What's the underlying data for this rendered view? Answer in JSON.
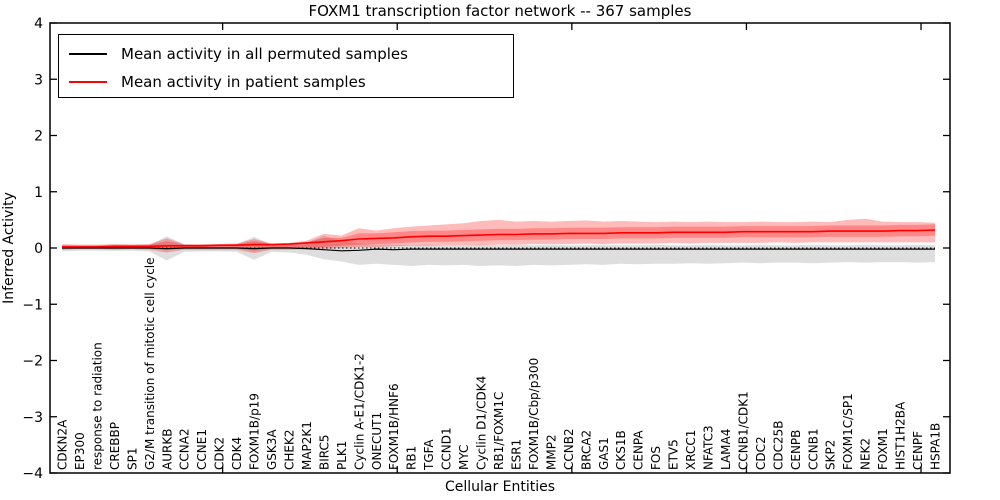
{
  "figure": {
    "title": "FOXM1 transcription factor network -- 367 samples",
    "xlabel": "Cellular Entities",
    "ylabel": "Inferred Activity"
  },
  "legend": {
    "items": [
      {
        "label": "Mean activity in all permuted samples",
        "color": "#000000"
      },
      {
        "label": "Mean activity in patient samples",
        "color": "#ff0000"
      }
    ]
  },
  "colors": {
    "patient_line": "#ff0000",
    "permuted_line": "#000000",
    "patient_band": "rgba(255,0,0,0.27)",
    "permuted_band": "rgba(0,0,0,0.13)"
  },
  "chart_data": {
    "type": "line",
    "title": "FOXM1 transcription factor network -- 367 samples",
    "xlabel": "Cellular Entities",
    "ylabel": "Inferred Activity",
    "ylim": [
      -4,
      4
    ],
    "yticks": [
      4,
      3,
      2,
      1,
      0,
      -1,
      -2,
      -3,
      -4
    ],
    "grid": false,
    "legend_position": "upper left",
    "zero_line_style": "dotted",
    "categories": [
      "CDKN2A",
      "EP300",
      "response to radiation",
      "CREBBP",
      "SP1",
      "G2/M transition of mitotic cell cycle",
      "AURKB",
      "CCNA2",
      "CCNE1",
      "CDK2",
      "CDK4",
      "FOXM1B/p19",
      "GSK3A",
      "CHEK2",
      "MAP2K1",
      "BIRC5",
      "PLK1",
      "Cyclin A-E1/CDK1-2",
      "ONECUT1",
      "FOXM1B/HNF6",
      "RB1",
      "TGFA",
      "CCND1",
      "MYC",
      "Cyclin D1/CDK4",
      "RB1/FOXM1C",
      "ESR1",
      "FOXM1B/Cbp/p300",
      "MMP2",
      "CCNB2",
      "BRCA2",
      "GAS1",
      "CKS1B",
      "CENPA",
      "FOS",
      "ETV5",
      "XRCC1",
      "NFATC3",
      "LAMA4",
      "CCNB1/CDK1",
      "CDC2",
      "CDC25B",
      "CENPB",
      "CCNB1",
      "SKP2",
      "FOXM1C/SP1",
      "NEK2",
      "FOXM1",
      "HIST1H2BA",
      "CENPF",
      "HSPA1B"
    ],
    "series": [
      {
        "name": "Mean activity in all permuted samples",
        "color": "#000000",
        "width": 1.2,
        "values": [
          0,
          0,
          0,
          0,
          0,
          0,
          -0.01,
          0,
          0,
          0,
          0,
          -0.01,
          0,
          0,
          -0.01,
          -0.03,
          -0.05,
          -0.04,
          -0.02,
          -0.03,
          -0.02,
          -0.02,
          -0.02,
          -0.02,
          -0.02,
          -0.02,
          -0.02,
          -0.02,
          -0.02,
          -0.02,
          -0.02,
          -0.02,
          -0.02,
          -0.02,
          -0.02,
          -0.02,
          -0.02,
          -0.02,
          -0.02,
          -0.02,
          -0.02,
          -0.02,
          -0.02,
          -0.02,
          -0.02,
          -0.02,
          -0.02,
          -0.02,
          -0.02,
          -0.02,
          -0.02
        ]
      },
      {
        "name": "Mean activity in patient samples",
        "color": "#ff0000",
        "width": 1.6,
        "values": [
          0.02,
          0.02,
          0.02,
          0.03,
          0.03,
          0.03,
          0.04,
          0.04,
          0.04,
          0.05,
          0.05,
          0.06,
          0.06,
          0.07,
          0.09,
          0.11,
          0.13,
          0.16,
          0.17,
          0.18,
          0.2,
          0.21,
          0.21,
          0.22,
          0.23,
          0.24,
          0.24,
          0.25,
          0.25,
          0.26,
          0.26,
          0.26,
          0.27,
          0.27,
          0.27,
          0.28,
          0.28,
          0.28,
          0.28,
          0.29,
          0.29,
          0.29,
          0.29,
          0.29,
          0.3,
          0.3,
          0.3,
          0.3,
          0.31,
          0.31,
          0.32
        ]
      }
    ],
    "bands": [
      {
        "name": "permuted-range",
        "color": "rgba(0,0,0,0.13)",
        "lower": [
          -0.06,
          -0.05,
          -0.05,
          -0.05,
          -0.05,
          -0.06,
          -0.22,
          -0.07,
          -0.06,
          -0.06,
          -0.07,
          -0.21,
          -0.07,
          -0.08,
          -0.12,
          -0.2,
          -0.24,
          -0.3,
          -0.28,
          -0.3,
          -0.32,
          -0.3,
          -0.31,
          -0.3,
          -0.32,
          -0.31,
          -0.32,
          -0.3,
          -0.31,
          -0.3,
          -0.29,
          -0.3,
          -0.28,
          -0.29,
          -0.28,
          -0.28,
          -0.27,
          -0.28,
          -0.27,
          -0.26,
          -0.27,
          -0.26,
          -0.26,
          -0.27,
          -0.26,
          -0.25,
          -0.26,
          -0.25,
          -0.25,
          -0.26,
          -0.25
        ],
        "upper": [
          0.05,
          0.04,
          0.04,
          0.04,
          0.04,
          0.05,
          0.21,
          0.06,
          0.05,
          0.05,
          0.06,
          0.2,
          0.06,
          0.07,
          0.09,
          0.22,
          0.12,
          0.08,
          0.06,
          0.06,
          0.05,
          0.06,
          0.05,
          0.05,
          0.06,
          0.05,
          0.06,
          0.05,
          0.06,
          0.05,
          0.05,
          0.06,
          0.05,
          0.05,
          0.06,
          0.05,
          0.05,
          0.06,
          0.05,
          0.05,
          0.06,
          0.05,
          0.05,
          0.06,
          0.05,
          0.05,
          0.06,
          0.05,
          0.05,
          0.06,
          0.05
        ]
      },
      {
        "name": "patient-range-outer",
        "color": "rgba(255,0,0,0.27)",
        "lower": [
          -0.03,
          -0.02,
          -0.02,
          -0.03,
          -0.02,
          -0.03,
          -0.08,
          -0.03,
          -0.03,
          -0.03,
          -0.03,
          -0.09,
          -0.03,
          -0.03,
          -0.02,
          -0.01,
          0.0,
          0.02,
          0.02,
          0.03,
          0.04,
          0.04,
          0.05,
          0.05,
          0.05,
          0.06,
          0.06,
          0.07,
          0.07,
          0.07,
          0.08,
          0.07,
          0.08,
          0.08,
          0.08,
          0.09,
          0.08,
          0.09,
          0.09,
          0.09,
          0.09,
          0.1,
          0.09,
          0.1,
          0.1,
          0.1,
          0.1,
          0.1,
          0.1,
          0.1,
          0.1
        ],
        "upper": [
          0.07,
          0.06,
          0.06,
          0.07,
          0.06,
          0.07,
          0.17,
          0.07,
          0.07,
          0.07,
          0.08,
          0.16,
          0.08,
          0.09,
          0.13,
          0.25,
          0.22,
          0.35,
          0.31,
          0.35,
          0.38,
          0.4,
          0.42,
          0.44,
          0.48,
          0.5,
          0.47,
          0.48,
          0.47,
          0.48,
          0.49,
          0.47,
          0.48,
          0.47,
          0.46,
          0.47,
          0.46,
          0.47,
          0.46,
          0.46,
          0.47,
          0.46,
          0.46,
          0.47,
          0.46,
          0.5,
          0.52,
          0.47,
          0.46,
          0.46,
          0.45
        ]
      },
      {
        "name": "patient-range-inner",
        "color": "rgba(255,0,0,0.27)",
        "lower": [
          -0.01,
          -0.01,
          -0.01,
          -0.01,
          -0.01,
          -0.01,
          -0.04,
          -0.01,
          -0.01,
          -0.01,
          -0.01,
          -0.05,
          -0.01,
          -0.01,
          0.0,
          0.02,
          0.04,
          0.06,
          0.07,
          0.08,
          0.1,
          0.11,
          0.11,
          0.12,
          0.13,
          0.14,
          0.14,
          0.15,
          0.15,
          0.16,
          0.16,
          0.16,
          0.17,
          0.17,
          0.17,
          0.18,
          0.18,
          0.18,
          0.18,
          0.19,
          0.19,
          0.19,
          0.19,
          0.19,
          0.2,
          0.2,
          0.2,
          0.2,
          0.21,
          0.21,
          0.22
        ],
        "upper": [
          0.05,
          0.05,
          0.05,
          0.06,
          0.06,
          0.06,
          0.12,
          0.06,
          0.06,
          0.06,
          0.07,
          0.12,
          0.07,
          0.08,
          0.1,
          0.18,
          0.18,
          0.26,
          0.26,
          0.28,
          0.3,
          0.31,
          0.31,
          0.32,
          0.33,
          0.34,
          0.34,
          0.35,
          0.35,
          0.36,
          0.36,
          0.36,
          0.37,
          0.37,
          0.37,
          0.38,
          0.38,
          0.38,
          0.38,
          0.39,
          0.39,
          0.39,
          0.39,
          0.39,
          0.4,
          0.4,
          0.4,
          0.4,
          0.41,
          0.41,
          0.42
        ]
      }
    ]
  }
}
